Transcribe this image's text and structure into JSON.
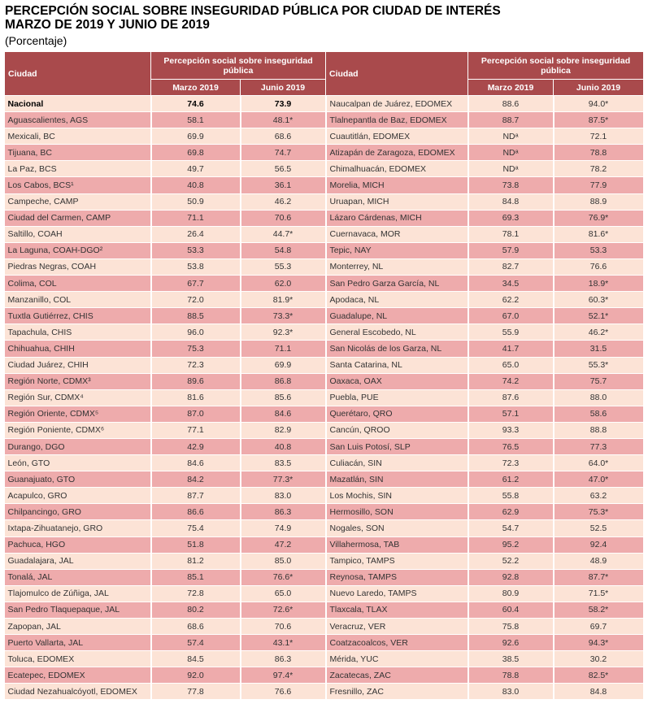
{
  "title_line1": "PERCEPCIÓN SOCIAL SOBRE INSEGURIDAD PÚBLICA POR CIUDAD DE INTERÉS",
  "title_line2": "MARZO DE 2019 Y JUNIO DE 2019",
  "subtitle": "(Porcentaje)",
  "header": {
    "city": "Ciudad",
    "group": "Percepción social sobre inseguridad pública",
    "col1": "Marzo 2019",
    "col2": "Junio 2019"
  },
  "colors": {
    "header": "#a94a4c",
    "row_light": "#fce3d6",
    "row_dark": "#eeabac"
  },
  "left": [
    [
      "Nacional",
      "74.6",
      "73.9"
    ],
    [
      "Aguascalientes, AGS",
      "58.1",
      "48.1*"
    ],
    [
      "Mexicali, BC",
      "69.9",
      "68.6"
    ],
    [
      "Tijuana, BC",
      "69.8",
      "74.7"
    ],
    [
      "La Paz, BCS",
      "49.7",
      "56.5"
    ],
    [
      "Los Cabos, BCS¹",
      "40.8",
      "36.1"
    ],
    [
      "Campeche, CAMP",
      "50.9",
      "46.2"
    ],
    [
      "Ciudad del Carmen, CAMP",
      "71.1",
      "70.6"
    ],
    [
      "Saltillo, COAH",
      "26.4",
      "44.7*"
    ],
    [
      "La Laguna, COAH-DGO²",
      "53.3",
      "54.8"
    ],
    [
      "Piedras Negras, COAH",
      "53.8",
      "55.3"
    ],
    [
      "Colima, COL",
      "67.7",
      "62.0"
    ],
    [
      "Manzanillo, COL",
      "72.0",
      "81.9*"
    ],
    [
      "Tuxtla Gutiérrez, CHIS",
      "88.5",
      "73.3*"
    ],
    [
      "Tapachula, CHIS",
      "96.0",
      "92.3*"
    ],
    [
      "Chihuahua, CHIH",
      "75.3",
      "71.1"
    ],
    [
      "Ciudad Juárez, CHIH",
      "72.3",
      "69.9"
    ],
    [
      "Región Norte, CDMX³",
      "89.6",
      "86.8"
    ],
    [
      "Región Sur, CDMX⁴",
      "81.6",
      "85.6"
    ],
    [
      "Región Oriente, CDMX⁵",
      "87.0",
      "84.6"
    ],
    [
      "Región Poniente, CDMX⁶",
      "77.1",
      "82.9"
    ],
    [
      "Durango, DGO",
      "42.9",
      "40.8"
    ],
    [
      "León, GTO",
      "84.6",
      "83.5"
    ],
    [
      "Guanajuato, GTO",
      "84.2",
      "77.3*"
    ],
    [
      "Acapulco, GRO",
      "87.7",
      "83.0"
    ],
    [
      "Chilpancingo, GRO",
      "86.6",
      "86.3"
    ],
    [
      "Ixtapa-Zihuatanejo, GRO",
      "75.4",
      "74.9"
    ],
    [
      "Pachuca, HGO",
      "51.8",
      "47.2"
    ],
    [
      "Guadalajara, JAL",
      "81.2",
      "85.0"
    ],
    [
      "Tonalá, JAL",
      "85.1",
      "76.6*"
    ],
    [
      "Tlajomulco de Zúñiga, JAL",
      "72.8",
      "65.0"
    ],
    [
      "San Pedro Tlaquepaque, JAL",
      "80.2",
      "72.6*"
    ],
    [
      "Zapopan, JAL",
      "68.6",
      "70.6"
    ],
    [
      "Puerto Vallarta, JAL",
      "57.4",
      "43.1*"
    ],
    [
      "Toluca, EDOMEX",
      "84.5",
      "86.3"
    ],
    [
      "Ecatepec, EDOMEX",
      "92.0",
      "97.4*"
    ],
    [
      "Ciudad Nezahualcóyotl, EDOMEX",
      "77.8",
      "76.6"
    ]
  ],
  "right": [
    [
      "Naucalpan de Juárez, EDOMEX",
      "88.6",
      "94.0*"
    ],
    [
      "Tlalnepantla de Baz, EDOMEX",
      "88.7",
      "87.5*"
    ],
    [
      "Cuautitlán, EDOMEX",
      "NDᵃ",
      "72.1"
    ],
    [
      "Atizapán de Zaragoza, EDOMEX",
      "NDᵃ",
      "78.8"
    ],
    [
      "Chimalhuacán, EDOMEX",
      "NDᵃ",
      "78.2"
    ],
    [
      "Morelia, MICH",
      "73.8",
      "77.9"
    ],
    [
      "Uruapan, MICH",
      "84.8",
      "88.9"
    ],
    [
      "Lázaro Cárdenas, MICH",
      "69.3",
      "76.9*"
    ],
    [
      "Cuernavaca, MOR",
      "78.1",
      "81.6*"
    ],
    [
      "Tepic, NAY",
      "57.9",
      "53.3"
    ],
    [
      "Monterrey, NL",
      "82.7",
      "76.6"
    ],
    [
      "San Pedro Garza García, NL",
      "34.5",
      "18.9*"
    ],
    [
      "Apodaca, NL",
      "62.2",
      "60.3*"
    ],
    [
      "Guadalupe, NL",
      "67.0",
      "52.1*"
    ],
    [
      "General Escobedo, NL",
      "55.9",
      "46.2*"
    ],
    [
      "San Nicolás de los Garza, NL",
      "41.7",
      "31.5"
    ],
    [
      "Santa Catarina, NL",
      "65.0",
      "55.3*"
    ],
    [
      "Oaxaca, OAX",
      "74.2",
      "75.7"
    ],
    [
      "Puebla, PUE",
      "87.6",
      "88.0"
    ],
    [
      "Querétaro, QRO",
      "57.1",
      "58.6"
    ],
    [
      "Cancún, QROO",
      "93.3",
      "88.8"
    ],
    [
      "San Luis Potosí, SLP",
      "76.5",
      "77.3"
    ],
    [
      "Culiacán, SIN",
      "72.3",
      "64.0*"
    ],
    [
      "Mazatlán, SIN",
      "61.2",
      "47.0*"
    ],
    [
      "Los Mochis, SIN",
      "55.8",
      "63.2"
    ],
    [
      "Hermosillo, SON",
      "62.9",
      "75.3*"
    ],
    [
      "Nogales, SON",
      "54.7",
      "52.5"
    ],
    [
      "Villahermosa, TAB",
      "95.2",
      "92.4"
    ],
    [
      "Tampico, TAMPS",
      "52.2",
      "48.9"
    ],
    [
      "Reynosa, TAMPS",
      "92.8",
      "87.7*"
    ],
    [
      "Nuevo Laredo, TAMPS",
      "80.9",
      "71.5*"
    ],
    [
      "Tlaxcala, TLAX",
      "60.4",
      "58.2*"
    ],
    [
      "Veracruz, VER",
      "75.8",
      "69.7"
    ],
    [
      "Coatzacoalcos, VER",
      "92.6",
      "94.3*"
    ],
    [
      "Mérida, YUC",
      "38.5",
      "30.2"
    ],
    [
      "Zacatecas, ZAC",
      "78.8",
      "82.5*"
    ],
    [
      "Fresnillo, ZAC",
      "83.0",
      "84.8"
    ]
  ]
}
